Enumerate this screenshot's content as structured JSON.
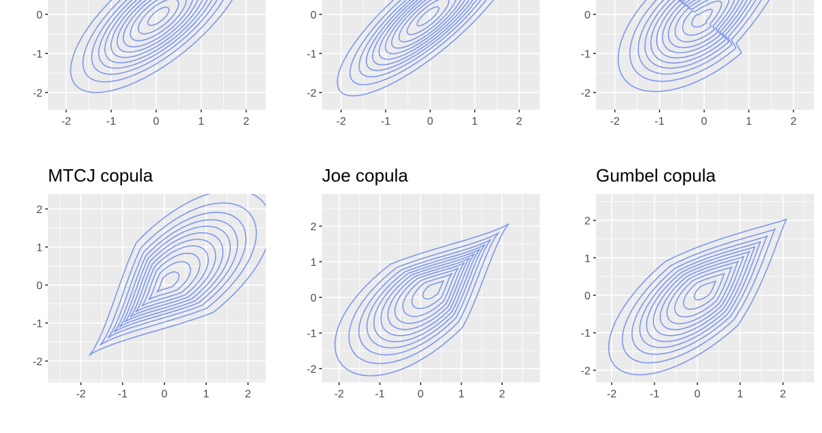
{
  "colors": {
    "panel_bg": "#ebebeb",
    "grid": "#ffffff",
    "contour": "#7b96f2",
    "tick_text": "#4d4d4d",
    "title_text": "#000000"
  },
  "chart_data": [
    {
      "type": "contour",
      "title": "",
      "note": "top-left panel, title cropped off-screen; elliptical (Gaussian-like) contours centered near (0,0)",
      "xlabel": "",
      "ylabel": "",
      "x_ticks": [
        "-2",
        "-1",
        "0",
        "1",
        "2"
      ],
      "y_ticks_visible": [
        "0",
        "-1",
        "-2"
      ],
      "xlim": [
        -2.4,
        2.4
      ],
      "grid": true,
      "mode": [
        0.0,
        0.0
      ],
      "n_contours": 11
    },
    {
      "type": "contour",
      "title": "",
      "note": "top-middle panel, title cropped off-screen; elongated elliptical contours centered near (0,0), heavier lower-left tail",
      "xlabel": "",
      "ylabel": "",
      "x_ticks": [
        "-2",
        "-1",
        "0",
        "1",
        "2"
      ],
      "y_ticks_visible": [
        "0",
        "-1",
        "-2"
      ],
      "xlim": [
        -2.4,
        2.4
      ],
      "grid": true,
      "mode": [
        0.0,
        0.0
      ],
      "n_contours": 11
    },
    {
      "type": "contour",
      "title": "",
      "note": "top-right panel, title cropped off-screen; contours with rounded lower-left lobe, centered near (0,0)",
      "xlabel": "",
      "ylabel": "",
      "x_ticks": [
        "-2",
        "-1",
        "0",
        "1",
        "2"
      ],
      "y_ticks_visible": [
        "0",
        "-1",
        "-2"
      ],
      "xlim": [
        -2.4,
        2.4
      ],
      "grid": true,
      "mode": [
        0.0,
        0.0
      ],
      "n_contours": 11
    },
    {
      "type": "contour",
      "title": "MTCJ copula",
      "xlabel": "",
      "ylabel": "",
      "x_ticks": [
        "-2",
        "-1",
        "0",
        "1",
        "2"
      ],
      "y_ticks": [
        "-2",
        "-1",
        "0",
        "1",
        "2"
      ],
      "xlim": [
        -2.8,
        2.4
      ],
      "ylim": [
        -2.5,
        2.4
      ],
      "grid": true,
      "mode": [
        -0.2,
        -0.2
      ],
      "tail": "lower-left sharp tail, rounded upper-right lobe",
      "n_contours": 11
    },
    {
      "type": "contour",
      "title": "Joe copula",
      "xlabel": "",
      "ylabel": "",
      "x_ticks": [
        "-2",
        "-1",
        "0",
        "1",
        "2"
      ],
      "y_ticks": [
        "-2",
        "-1",
        "0",
        "1",
        "2"
      ],
      "xlim": [
        -2.4,
        2.9
      ],
      "ylim": [
        -2.4,
        2.9
      ],
      "grid": true,
      "mode": [
        0.6,
        0.5
      ],
      "tail": "upper-right sharp tail, rounded lower-left lobe",
      "n_contours": 11
    },
    {
      "type": "contour",
      "title": "Gumbel copula",
      "xlabel": "",
      "ylabel": "",
      "x_ticks": [
        "-2",
        "-1",
        "0",
        "1",
        "2"
      ],
      "y_ticks": [
        "-2",
        "-1",
        "0",
        "1",
        "2"
      ],
      "xlim": [
        -2.4,
        2.7
      ],
      "ylim": [
        -2.4,
        2.6
      ],
      "grid": true,
      "mode": [
        0.1,
        0.1
      ],
      "tail": "upper-right sharp tail, rounded lower-left lobe",
      "n_contours": 11
    }
  ]
}
